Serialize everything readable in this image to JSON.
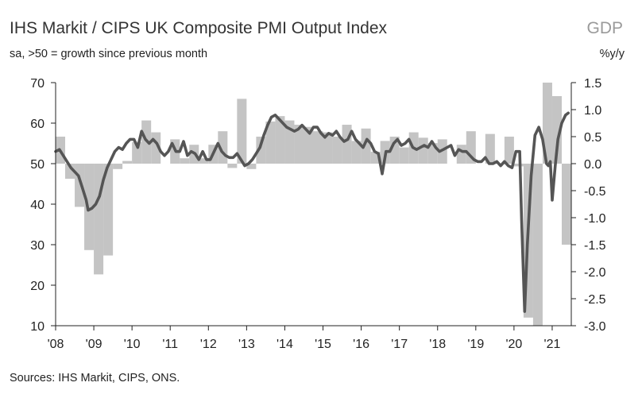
{
  "chart_data": {
    "type": "bar+line",
    "title": "IHS Markit / CIPS UK Composite PMI Output Index",
    "subtitle": "sa, >50 = growth since previous month",
    "secondary_title": "GDP",
    "secondary_unit": "%y/y",
    "source": "Sources: IHS Markit, CIPS, ONS.",
    "x_range": [
      2008.0,
      2021.5
    ],
    "x_tick_labels": [
      "'08",
      "'09",
      "'10",
      "'11",
      "'12",
      "'13",
      "'14",
      "'15",
      "'16",
      "'17",
      "'18",
      "'19",
      "'20",
      "'21"
    ],
    "x_tick_values": [
      2008,
      2009,
      2010,
      2011,
      2012,
      2013,
      2014,
      2015,
      2016,
      2017,
      2018,
      2019,
      2020,
      2021
    ],
    "left_axis": {
      "range": [
        10,
        70
      ],
      "ticks": [
        10,
        20,
        30,
        40,
        50,
        60,
        70
      ]
    },
    "right_axis": {
      "range": [
        -3.0,
        1.5
      ],
      "ticks": [
        "1.5",
        "1.0",
        "0.5",
        "0.0",
        "-0.5",
        "-1.0",
        "-1.5",
        "-2.0",
        "-2.5",
        "-3.0"
      ]
    },
    "colors": {
      "bars": "#c4c4c4",
      "line": "#555555",
      "axis": "#222222"
    },
    "series": [
      {
        "name": "GDP %y/y (quarterly, right axis)",
        "kind": "bar",
        "points": [
          [
            2008.0,
            0.5
          ],
          [
            2008.25,
            -0.28
          ],
          [
            2008.5,
            -0.8
          ],
          [
            2008.75,
            -1.6
          ],
          [
            2009.0,
            -2.05
          ],
          [
            2009.25,
            -1.7
          ],
          [
            2009.5,
            -0.1
          ],
          [
            2009.75,
            0.05
          ],
          [
            2010.0,
            0.4
          ],
          [
            2010.25,
            0.8
          ],
          [
            2010.5,
            0.58
          ],
          [
            2010.75,
            0.0
          ],
          [
            2011.0,
            0.45
          ],
          [
            2011.25,
            0.1
          ],
          [
            2011.5,
            0.35
          ],
          [
            2011.75,
            0.1
          ],
          [
            2012.0,
            0.35
          ],
          [
            2012.25,
            0.6
          ],
          [
            2012.5,
            -0.08
          ],
          [
            2012.75,
            1.2
          ],
          [
            2013.0,
            -0.1
          ],
          [
            2013.25,
            0.5
          ],
          [
            2013.5,
            0.78
          ],
          [
            2013.75,
            0.88
          ],
          [
            2014.0,
            0.8
          ],
          [
            2014.25,
            0.72
          ],
          [
            2014.5,
            0.68
          ],
          [
            2014.75,
            0.6
          ],
          [
            2015.0,
            0.58
          ],
          [
            2015.25,
            0.5
          ],
          [
            2015.5,
            0.72
          ],
          [
            2015.75,
            0.42
          ],
          [
            2016.0,
            0.65
          ],
          [
            2016.25,
            0.22
          ],
          [
            2016.5,
            0.42
          ],
          [
            2016.75,
            0.5
          ],
          [
            2017.0,
            0.3
          ],
          [
            2017.25,
            0.58
          ],
          [
            2017.5,
            0.48
          ],
          [
            2017.75,
            0.38
          ],
          [
            2018.0,
            0.45
          ],
          [
            2018.25,
            0.0
          ],
          [
            2018.5,
            0.35
          ],
          [
            2018.75,
            0.6
          ],
          [
            2019.0,
            0.0
          ],
          [
            2019.25,
            0.55
          ],
          [
            2019.5,
            0.0
          ],
          [
            2019.75,
            0.5
          ],
          [
            2020.0,
            -0.05
          ],
          [
            2020.25,
            -2.85
          ],
          [
            2020.5,
            -3.0
          ],
          [
            2020.75,
            1.5
          ],
          [
            2021.0,
            1.25
          ],
          [
            2021.25,
            -1.5
          ]
        ]
      },
      {
        "name": "Composite PMI Output Index (monthly, left axis)",
        "kind": "line",
        "points": [
          [
            2008.0,
            53
          ],
          [
            2008.1,
            53.5
          ],
          [
            2008.2,
            52
          ],
          [
            2008.3,
            50.5
          ],
          [
            2008.4,
            49
          ],
          [
            2008.5,
            48
          ],
          [
            2008.6,
            47
          ],
          [
            2008.7,
            44
          ],
          [
            2008.8,
            41
          ],
          [
            2008.85,
            38.5
          ],
          [
            2008.95,
            39
          ],
          [
            2009.05,
            40
          ],
          [
            2009.15,
            42
          ],
          [
            2009.25,
            46
          ],
          [
            2009.35,
            49
          ],
          [
            2009.45,
            51
          ],
          [
            2009.55,
            53
          ],
          [
            2009.65,
            54
          ],
          [
            2009.75,
            53.5
          ],
          [
            2009.85,
            55
          ],
          [
            2009.95,
            56
          ],
          [
            2010.05,
            56
          ],
          [
            2010.15,
            54
          ],
          [
            2010.25,
            58
          ],
          [
            2010.35,
            56
          ],
          [
            2010.45,
            55
          ],
          [
            2010.55,
            56
          ],
          [
            2010.65,
            55
          ],
          [
            2010.75,
            53
          ],
          [
            2010.85,
            52
          ],
          [
            2010.95,
            53
          ],
          [
            2011.05,
            55
          ],
          [
            2011.15,
            53
          ],
          [
            2011.25,
            53
          ],
          [
            2011.35,
            55.5
          ],
          [
            2011.45,
            52
          ],
          [
            2011.55,
            53
          ],
          [
            2011.65,
            52.5
          ],
          [
            2011.75,
            51
          ],
          [
            2011.85,
            53
          ],
          [
            2011.95,
            51
          ],
          [
            2012.05,
            51
          ],
          [
            2012.15,
            53
          ],
          [
            2012.25,
            55
          ],
          [
            2012.35,
            53
          ],
          [
            2012.45,
            52
          ],
          [
            2012.55,
            51.5
          ],
          [
            2012.65,
            51.5
          ],
          [
            2012.75,
            52.5
          ],
          [
            2012.85,
            51
          ],
          [
            2012.95,
            49.5
          ],
          [
            2013.05,
            50
          ],
          [
            2013.15,
            51
          ],
          [
            2013.25,
            52.5
          ],
          [
            2013.35,
            54
          ],
          [
            2013.45,
            57
          ],
          [
            2013.55,
            59.5
          ],
          [
            2013.65,
            61.5
          ],
          [
            2013.75,
            62
          ],
          [
            2013.85,
            61
          ],
          [
            2013.95,
            60
          ],
          [
            2014.05,
            59
          ],
          [
            2014.15,
            58.5
          ],
          [
            2014.25,
            58
          ],
          [
            2014.35,
            58.5
          ],
          [
            2014.45,
            59.5
          ],
          [
            2014.55,
            58.5
          ],
          [
            2014.65,
            57.5
          ],
          [
            2014.75,
            59
          ],
          [
            2014.85,
            59
          ],
          [
            2014.95,
            57.5
          ],
          [
            2015.05,
            56.5
          ],
          [
            2015.15,
            57.5
          ],
          [
            2015.25,
            57
          ],
          [
            2015.35,
            58
          ],
          [
            2015.45,
            56.5
          ],
          [
            2015.55,
            55.5
          ],
          [
            2015.65,
            56
          ],
          [
            2015.75,
            58
          ],
          [
            2015.85,
            56
          ],
          [
            2015.95,
            55
          ],
          [
            2016.05,
            54
          ],
          [
            2016.15,
            56
          ],
          [
            2016.25,
            55
          ],
          [
            2016.35,
            53
          ],
          [
            2016.45,
            52.5
          ],
          [
            2016.55,
            47.5
          ],
          [
            2016.65,
            53
          ],
          [
            2016.75,
            53
          ],
          [
            2016.85,
            55
          ],
          [
            2016.95,
            56
          ],
          [
            2017.05,
            54.5
          ],
          [
            2017.15,
            55
          ],
          [
            2017.25,
            56
          ],
          [
            2017.35,
            54
          ],
          [
            2017.45,
            53.5
          ],
          [
            2017.55,
            54
          ],
          [
            2017.65,
            54.5
          ],
          [
            2017.75,
            54
          ],
          [
            2017.85,
            55.5
          ],
          [
            2017.95,
            54
          ],
          [
            2018.05,
            53
          ],
          [
            2018.15,
            53.5
          ],
          [
            2018.25,
            54
          ],
          [
            2018.35,
            54.5
          ],
          [
            2018.45,
            52
          ],
          [
            2018.55,
            53.5
          ],
          [
            2018.65,
            53
          ],
          [
            2018.75,
            53
          ],
          [
            2018.85,
            52
          ],
          [
            2018.95,
            51
          ],
          [
            2019.05,
            50.5
          ],
          [
            2019.15,
            50.5
          ],
          [
            2019.25,
            51.5
          ],
          [
            2019.35,
            50
          ],
          [
            2019.45,
            50
          ],
          [
            2019.55,
            50.5
          ],
          [
            2019.65,
            49.5
          ],
          [
            2019.75,
            50.5
          ],
          [
            2019.85,
            49.5
          ],
          [
            2019.95,
            49
          ],
          [
            2020.05,
            53
          ],
          [
            2020.15,
            53
          ],
          [
            2020.2,
            36
          ],
          [
            2020.28,
            13.5
          ],
          [
            2020.35,
            30
          ],
          [
            2020.45,
            47
          ],
          [
            2020.55,
            57
          ],
          [
            2020.65,
            59
          ],
          [
            2020.75,
            56
          ],
          [
            2020.85,
            50
          ],
          [
            2020.9,
            49.5
          ],
          [
            2020.95,
            50.5
          ],
          [
            2021.0,
            41
          ],
          [
            2021.08,
            49.5
          ],
          [
            2021.15,
            56
          ],
          [
            2021.25,
            60
          ],
          [
            2021.35,
            62
          ],
          [
            2021.42,
            62.5
          ]
        ]
      }
    ]
  }
}
